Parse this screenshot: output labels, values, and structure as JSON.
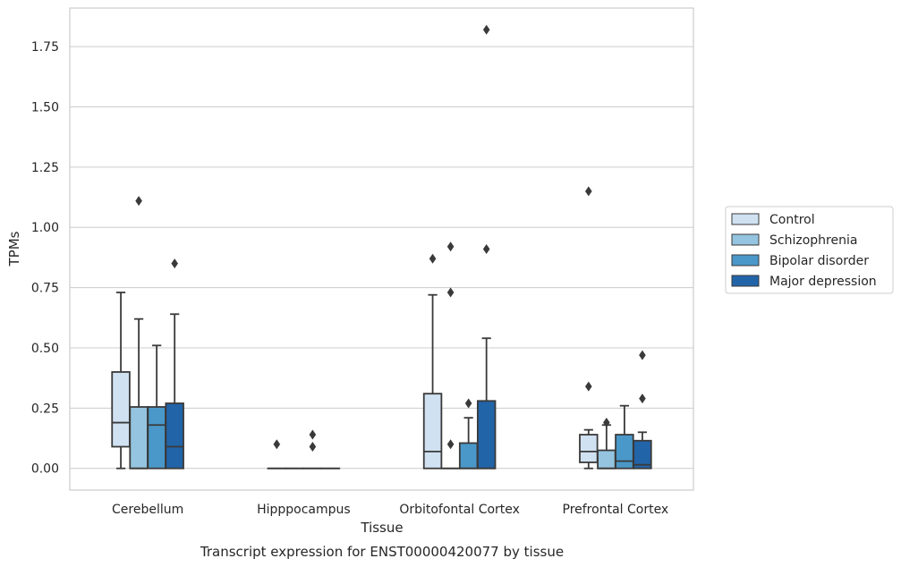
{
  "chart_data": {
    "type": "box",
    "title": "Transcript expression for ENST00000420077 by tissue",
    "xlabel": "Tissue",
    "ylabel": "TPMs",
    "ylim": [
      -0.09,
      1.91
    ],
    "yticks": [
      "0.00",
      "0.25",
      "0.50",
      "0.75",
      "1.00",
      "1.25",
      "1.50",
      "1.75"
    ],
    "ytick_values": [
      0,
      0.25,
      0.5,
      0.75,
      1.0,
      1.25,
      1.5,
      1.75
    ],
    "grid": "horizontal",
    "legend_position": "right",
    "categories": [
      "Cerebellum",
      "Hipppocampus",
      "Orbitofontal Cortex",
      "Prefrontal Cortex"
    ],
    "series": [
      {
        "name": "Control",
        "color": "#d0e1f2",
        "boxes": [
          {
            "whisker_low": 0.0,
            "q1": 0.09,
            "median": 0.19,
            "q3": 0.4,
            "whisker_high": 0.73,
            "outliers": []
          },
          {
            "whisker_low": 0.0,
            "q1": 0.0,
            "median": 0.0,
            "q3": 0.0,
            "whisker_high": 0.0,
            "outliers": [
              0.1
            ]
          },
          {
            "whisker_low": 0.0,
            "q1": 0.0,
            "median": 0.07,
            "q3": 0.31,
            "whisker_high": 0.72,
            "outliers": [
              0.87
            ]
          },
          {
            "whisker_low": 0.0,
            "q1": 0.025,
            "median": 0.07,
            "q3": 0.14,
            "whisker_high": 0.16,
            "outliers": [
              0.34,
              1.15
            ]
          }
        ]
      },
      {
        "name": "Schizophrenia",
        "color": "#94c4df",
        "boxes": [
          {
            "whisker_low": 0.0,
            "q1": 0.0,
            "median": 0.0,
            "q3": 0.255,
            "whisker_high": 0.62,
            "outliers": [
              1.11
            ]
          },
          {
            "whisker_low": 0.0,
            "q1": 0.0,
            "median": 0.0,
            "q3": 0.0,
            "whisker_high": 0.0,
            "outliers": []
          },
          {
            "whisker_low": 0.0,
            "q1": 0.0,
            "median": 0.0,
            "q3": 0.0,
            "whisker_high": 0.0,
            "outliers": [
              0.1,
              0.73,
              0.92
            ]
          },
          {
            "whisker_low": 0.0,
            "q1": 0.0,
            "median": 0.0,
            "q3": 0.075,
            "whisker_high": 0.18,
            "outliers": [
              0.19
            ]
          }
        ]
      },
      {
        "name": "Bipolar disorder",
        "color": "#4a98c9",
        "boxes": [
          {
            "whisker_low": 0.0,
            "q1": 0.0,
            "median": 0.18,
            "q3": 0.255,
            "whisker_high": 0.51,
            "outliers": []
          },
          {
            "whisker_low": 0.0,
            "q1": 0.0,
            "median": 0.0,
            "q3": 0.0,
            "whisker_high": 0.0,
            "outliers": [
              0.09,
              0.14
            ]
          },
          {
            "whisker_low": 0.0,
            "q1": 0.0,
            "median": 0.0,
            "q3": 0.105,
            "whisker_high": 0.21,
            "outliers": [
              0.27
            ]
          },
          {
            "whisker_low": 0.0,
            "q1": 0.0,
            "median": 0.03,
            "q3": 0.14,
            "whisker_high": 0.26,
            "outliers": []
          }
        ]
      },
      {
        "name": "Major depression",
        "color": "#2264a8",
        "boxes": [
          {
            "whisker_low": 0.0,
            "q1": 0.0,
            "median": 0.09,
            "q3": 0.27,
            "whisker_high": 0.64,
            "outliers": [
              0.85
            ]
          },
          {
            "whisker_low": 0.0,
            "q1": 0.0,
            "median": 0.0,
            "q3": 0.0,
            "whisker_high": 0.0,
            "outliers": []
          },
          {
            "whisker_low": 0.0,
            "q1": 0.0,
            "median": 0.0,
            "q3": 0.28,
            "whisker_high": 0.54,
            "outliers": [
              0.91,
              1.82
            ]
          },
          {
            "whisker_low": 0.0,
            "q1": 0.0,
            "median": 0.015,
            "q3": 0.115,
            "whisker_high": 0.15,
            "outliers": [
              0.29,
              0.47
            ]
          }
        ]
      }
    ]
  }
}
